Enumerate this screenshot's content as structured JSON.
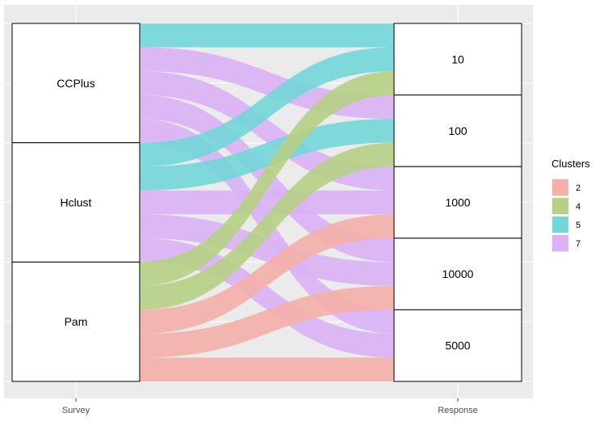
{
  "chart_data": {
    "type": "alluvial",
    "title": "",
    "xlabel": "",
    "ylabel": "",
    "axes": [
      "Survey",
      "Response"
    ],
    "grid": true,
    "legend": {
      "title": "Clusters",
      "position": "right",
      "items": [
        {
          "name": "2",
          "color": "#F4AFA9"
        },
        {
          "name": "4",
          "color": "#B6D084"
        },
        {
          "name": "5",
          "color": "#73D6D8"
        },
        {
          "name": "7",
          "color": "#D9B3F5"
        }
      ]
    },
    "strata": {
      "Survey": [
        "CCPlus",
        "Hclust",
        "Pam"
      ],
      "Response": [
        "10",
        "100",
        "1000",
        "10000",
        "5000"
      ]
    },
    "flows": [
      {
        "from": "CCPlus",
        "to": "10",
        "cluster": "5",
        "value": 1
      },
      {
        "from": "CCPlus",
        "to": "100",
        "cluster": "7",
        "value": 1
      },
      {
        "from": "CCPlus",
        "to": "1000",
        "cluster": "7",
        "value": 1
      },
      {
        "from": "CCPlus",
        "to": "10000",
        "cluster": "7",
        "value": 1
      },
      {
        "from": "CCPlus",
        "to": "5000",
        "cluster": "7",
        "value": 1
      },
      {
        "from": "Hclust",
        "to": "10",
        "cluster": "5",
        "value": 1
      },
      {
        "from": "Hclust",
        "to": "100",
        "cluster": "5",
        "value": 1
      },
      {
        "from": "Hclust",
        "to": "1000",
        "cluster": "7",
        "value": 1
      },
      {
        "from": "Hclust",
        "to": "10000",
        "cluster": "7",
        "value": 1
      },
      {
        "from": "Hclust",
        "to": "5000",
        "cluster": "7",
        "value": 1
      },
      {
        "from": "Pam",
        "to": "10",
        "cluster": "4",
        "value": 1
      },
      {
        "from": "Pam",
        "to": "100",
        "cluster": "4",
        "value": 1
      },
      {
        "from": "Pam",
        "to": "1000",
        "cluster": "2",
        "value": 1
      },
      {
        "from": "Pam",
        "to": "10000",
        "cluster": "2",
        "value": 1
      },
      {
        "from": "Pam",
        "to": "5000",
        "cluster": "2",
        "value": 1
      }
    ]
  }
}
